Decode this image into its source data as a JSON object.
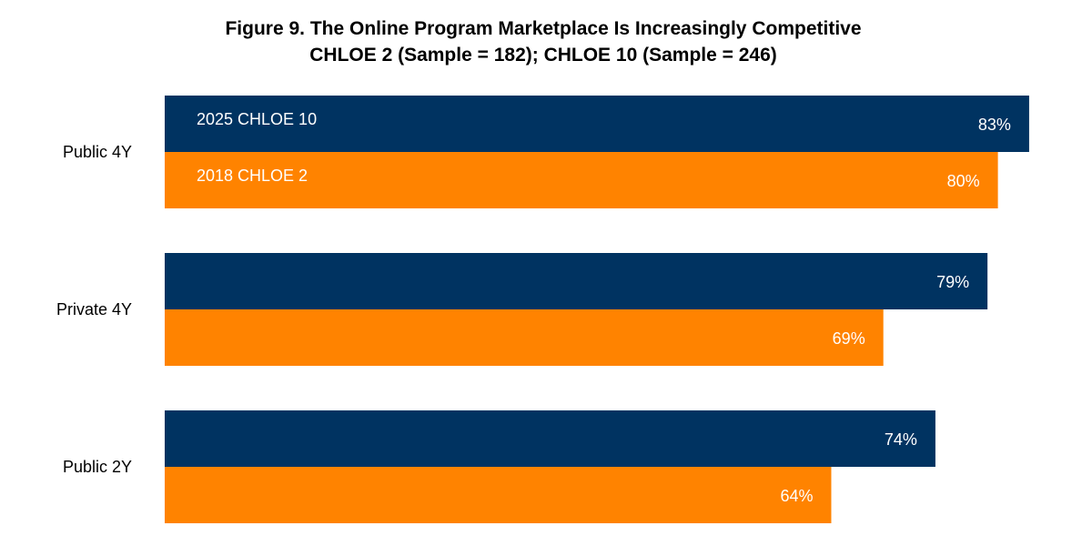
{
  "chart_data": {
    "type": "bar",
    "orientation": "horizontal",
    "title": "Figure 9. The Online Program Marketplace Is Increasingly Competitive",
    "subtitle": "CHLOE 2 (Sample = 182); CHLOE 10 (Sample = 246)",
    "categories": [
      "Public 4Y",
      "Private 4Y",
      "Public 2Y"
    ],
    "series": [
      {
        "name": "2025 CHLOE 10",
        "values": [
          83,
          79,
          74
        ],
        "labels": [
          "83%",
          "79%",
          "74%"
        ],
        "color": "#003361"
      },
      {
        "name": "2018 CHLOE 2",
        "values": [
          80,
          69,
          64
        ],
        "labels": [
          "80%",
          "69%",
          "64%"
        ],
        "color": "#FF8300"
      }
    ],
    "xlim": [
      0,
      100
    ],
    "unit": "%",
    "grid": false,
    "legend": "inside-bars"
  }
}
